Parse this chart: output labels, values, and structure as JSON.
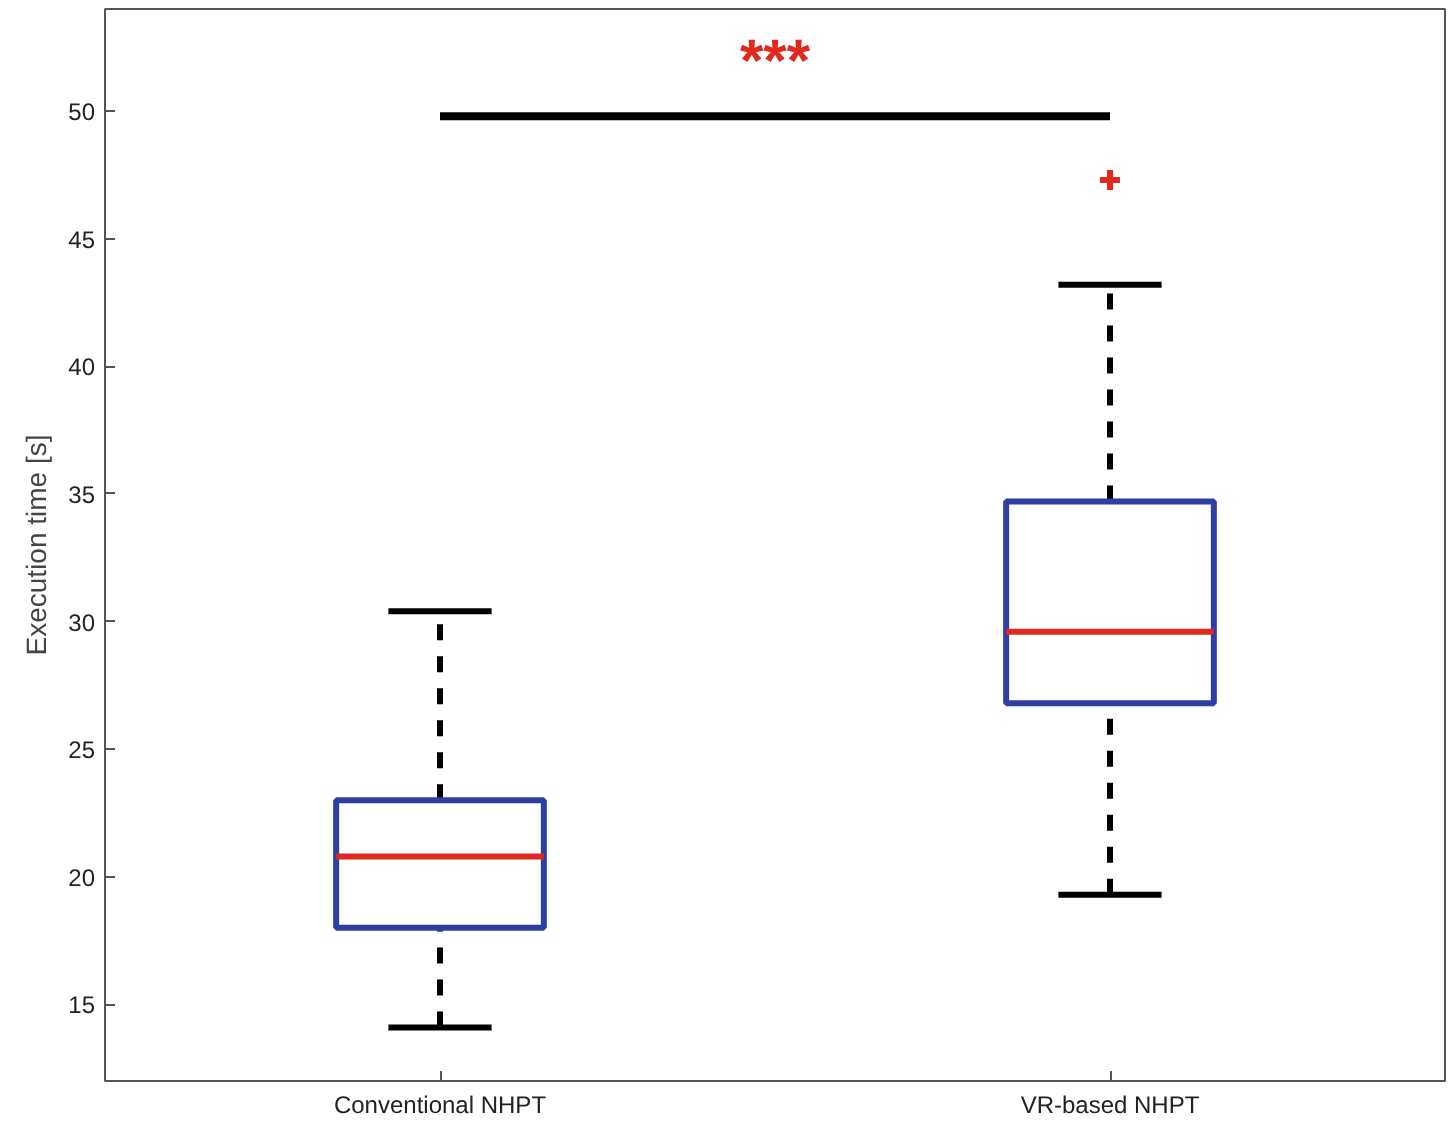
{
  "chart_data": {
    "type": "box",
    "ylabel": "Execution time [s]",
    "categories": [
      "Conventional NHPT",
      "VR-based NHPT"
    ],
    "series": [
      {
        "color": "#2e3fa3",
        "boxes": [
          {
            "low": 14.1,
            "q1": 18.0,
            "median": 20.8,
            "q3": 23.0,
            "high": 30.4
          },
          {
            "low": 19.3,
            "q1": 26.8,
            "median": 29.6,
            "q3": 34.7,
            "high": 43.2,
            "outliers": [
              47.3
            ]
          }
        ]
      }
    ],
    "ylim": [
      12,
      54
    ],
    "yticks": [
      15,
      20,
      25,
      30,
      35,
      40,
      45,
      50
    ],
    "grid": false,
    "annotations": [
      "***"
    ]
  }
}
